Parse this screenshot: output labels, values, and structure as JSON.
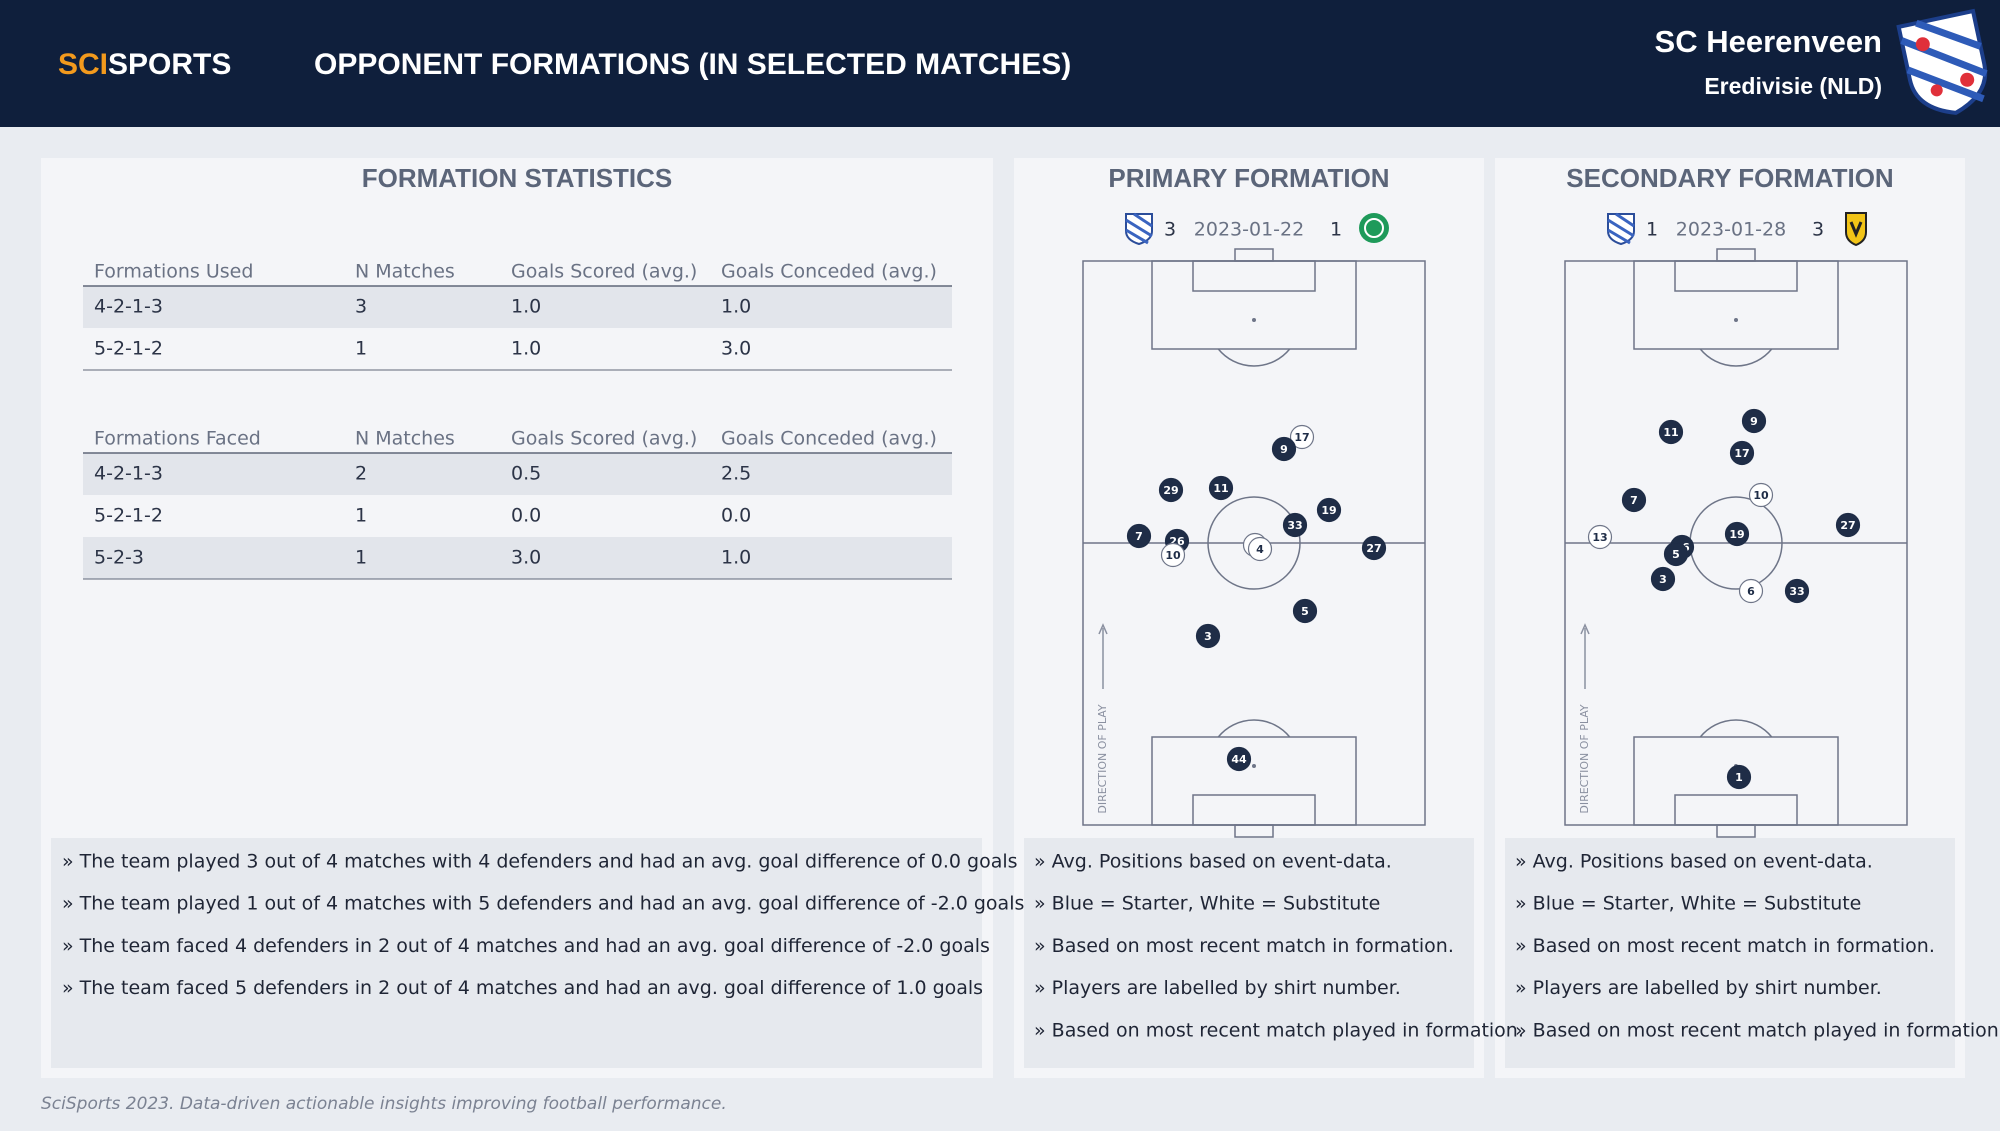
{
  "header": {
    "logo_a": "SCI",
    "logo_b": "SPORTS",
    "title": "OPPONENT FORMATIONS (IN SELECTED MATCHES)",
    "team": "SC Heerenveen",
    "league": "Eredivisie (NLD)"
  },
  "statistics": {
    "title": "FORMATION STATISTICS",
    "used": {
      "columns": [
        "Formations Used",
        "N Matches",
        "Goals Scored (avg.)",
        "Goals Conceded (avg.)"
      ],
      "rows": [
        [
          "4-2-1-3",
          "3",
          "1.0",
          "1.0"
        ],
        [
          "5-2-1-2",
          "1",
          "1.0",
          "3.0"
        ]
      ]
    },
    "faced": {
      "columns": [
        "Formations Faced",
        "N Matches",
        "Goals Scored (avg.)",
        "Goals Conceded (avg.)"
      ],
      "rows": [
        [
          "4-2-1-3",
          "2",
          "0.5",
          "2.5"
        ],
        [
          "5-2-1-2",
          "1",
          "0.0",
          "0.0"
        ],
        [
          "5-2-3",
          "1",
          "3.0",
          "1.0"
        ]
      ]
    },
    "notes": [
      "» The team played 3 out of 4 matches with 4 defenders and had an avg. goal difference of 0.0 goals",
      "» The team played 1 out of 4 matches with 5 defenders and had an avg. goal difference of -2.0 goals",
      "» The team faced 4 defenders in 2 out of 4 matches and had an avg. goal difference of -2.0 goals",
      "» The team faced 5 defenders in 2 out of 4 matches and had an avg. goal difference of 1.0 goals"
    ]
  },
  "primary": {
    "title": "PRIMARY FORMATION",
    "match": {
      "home_score": "3",
      "date": "2023-01-22",
      "away_score": "1"
    },
    "direction": "DIRECTION OF PLAY",
    "players": [
      {
        "label": "17",
        "starter": false
      },
      {
        "label": "9",
        "starter": true
      },
      {
        "label": "29",
        "starter": true
      },
      {
        "label": "11",
        "starter": true
      },
      {
        "label": "19",
        "starter": true
      },
      {
        "label": "33",
        "starter": true
      },
      {
        "label": "7",
        "starter": true
      },
      {
        "label": "26",
        "starter": true
      },
      {
        "label": "10",
        "starter": false
      },
      {
        "label": "8",
        "starter": false
      },
      {
        "label": "4",
        "starter": false
      },
      {
        "label": "27",
        "starter": true
      },
      {
        "label": "5",
        "starter": true
      },
      {
        "label": "3",
        "starter": true
      },
      {
        "label": "44",
        "starter": true
      }
    ],
    "notes": [
      "» Avg. Positions based on event-data.",
      "» Blue = Starter, White = Substitute",
      "» Based on most recent match in formation.",
      "» Players are labelled by shirt number.",
      "» Based on most recent match played in formation."
    ]
  },
  "secondary": {
    "title": "SECONDARY FORMATION",
    "match": {
      "home_score": "1",
      "date": "2023-01-28",
      "away_score": "3"
    },
    "direction": "DIRECTION OF PLAY",
    "players": [
      {
        "label": "11",
        "starter": true
      },
      {
        "label": "9",
        "starter": true
      },
      {
        "label": "17",
        "starter": true
      },
      {
        "label": "7",
        "starter": true
      },
      {
        "label": "10",
        "starter": false
      },
      {
        "label": "13",
        "starter": false
      },
      {
        "label": "27",
        "starter": true
      },
      {
        "label": "19",
        "starter": true
      },
      {
        "label": "26",
        "starter": true
      },
      {
        "label": "5",
        "starter": true
      },
      {
        "label": "3",
        "starter": true
      },
      {
        "label": "6",
        "starter": false
      },
      {
        "label": "33",
        "starter": true
      },
      {
        "label": "1",
        "starter": true
      }
    ],
    "notes": [
      "» Avg. Positions based on event-data.",
      "» Blue = Starter, White = Substitute",
      "» Based on most recent match in formation.",
      "» Players are labelled by shirt number.",
      "» Based on most recent match played in formation."
    ]
  },
  "footer": "SciSports 2023. Data-driven actionable insights improving football performance."
}
